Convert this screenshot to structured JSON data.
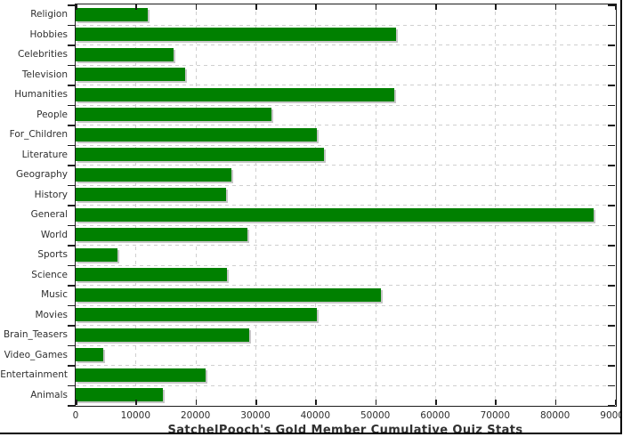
{
  "chart_data": {
    "type": "bar",
    "orientation": "horizontal",
    "title": "SatchelPooch's Gold Member Cumulative Quiz Stats",
    "xlabel": "",
    "ylabel": "",
    "categories": [
      "Religion",
      "Hobbies",
      "Celebrities",
      "Television",
      "Humanities",
      "People",
      "For_Children",
      "Literature",
      "Geography",
      "History",
      "General",
      "World",
      "Sports",
      "Science",
      "Music",
      "Movies",
      "Brain_Teasers",
      "Video_Games",
      "Entertainment",
      "Animals"
    ],
    "values": [
      12000,
      53400,
      16400,
      18200,
      53200,
      32600,
      40200,
      41400,
      26000,
      25100,
      86400,
      28700,
      7000,
      25200,
      51000,
      40300,
      29000,
      4600,
      21700,
      14600
    ],
    "xlim": [
      0,
      90000
    ],
    "x_tick_step": 10000,
    "x_tick_labels": [
      "0",
      "10000",
      "20000",
      "30000",
      "40000",
      "50000",
      "60000",
      "70000",
      "80000",
      "90000"
    ],
    "grid": "dashed-both-axes",
    "legend": "none",
    "colors": {
      "bar": "#008000",
      "bar_shadow": "#c6c6c6",
      "axis": "#1c1c1c",
      "grid": "#cfcfcf",
      "text": "#2f2f2f",
      "frame": "#000000",
      "background": "#ffffff"
    }
  }
}
